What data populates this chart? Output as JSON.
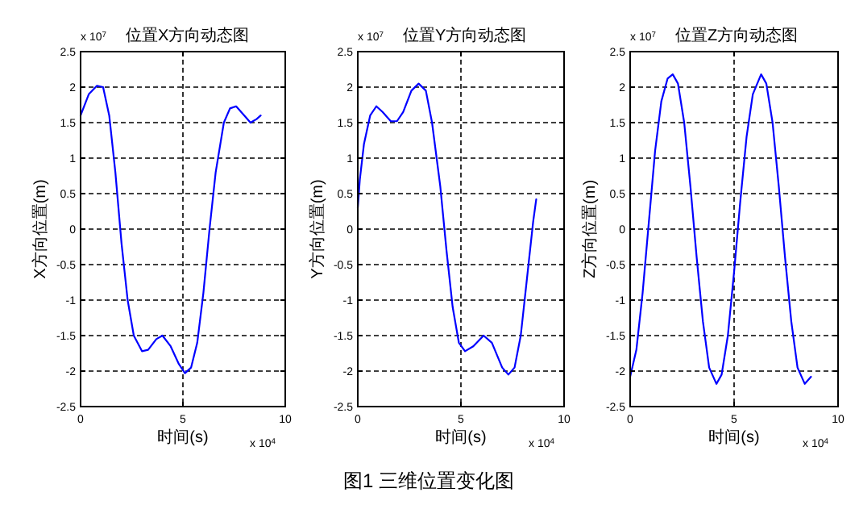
{
  "chart_data": [
    {
      "type": "line",
      "title": "位置X方向动态图",
      "xlabel": "时间(s)",
      "ylabel": "X方向位置(m)",
      "xlim": [
        0,
        10
      ],
      "xticks": [
        0,
        5,
        10
      ],
      "ylim": [
        -2.5,
        2.5
      ],
      "yticks": [
        -2.5,
        -2,
        -1.5,
        -1,
        -0.5,
        0,
        0.5,
        1,
        1.5,
        2,
        2.5
      ],
      "grid": true,
      "annotations": [
        "x 10$^{7}$",
        "x 10$^{4}$",
        "图1 三维位置变化图"
      ],
      "series": [
        {
          "color": "#0000ff",
          "x": [
            0,
            0.4,
            0.8,
            1.1,
            1.4,
            1.7,
            2.0,
            2.3,
            2.6,
            3.0,
            3.3,
            3.7,
            4.0,
            4.4,
            4.8,
            5.1,
            5.4,
            5.7,
            6.0,
            6.3,
            6.6,
            7.0,
            7.3,
            7.6,
            8.0,
            8.3,
            8.6,
            8.8
          ],
          "values": [
            1.6,
            1.9,
            2.02,
            2.0,
            1.6,
            0.8,
            -0.2,
            -1.0,
            -1.5,
            -1.72,
            -1.7,
            -1.55,
            -1.5,
            -1.65,
            -1.9,
            -2.03,
            -1.95,
            -1.6,
            -0.9,
            0,
            0.8,
            1.5,
            1.7,
            1.73,
            1.6,
            1.5,
            1.55,
            1.6
          ]
        }
      ]
    },
    {
      "type": "line",
      "title": "位置Y方向动态图",
      "xlabel": "时间(s)",
      "ylabel": "Y方向位置(m)",
      "xlim": [
        0,
        10
      ],
      "xticks": [
        0,
        5,
        10
      ],
      "ylim": [
        -2.5,
        2.5
      ],
      "yticks": [
        -2.5,
        -2,
        -1.5,
        -1,
        -0.5,
        0,
        0.5,
        1,
        1.5,
        2,
        2.5
      ],
      "grid": true,
      "annotations": [
        "x 10$^{7}$",
        "x 10$^{4}$"
      ],
      "series": [
        {
          "color": "#0000ff",
          "x": [
            0,
            0.1,
            0.3,
            0.6,
            0.9,
            1.2,
            1.6,
            1.9,
            2.2,
            2.6,
            2.95,
            3.3,
            3.6,
            4.0,
            4.3,
            4.6,
            4.9,
            5.2,
            5.6,
            6.1,
            6.5,
            7.0,
            7.3,
            7.6,
            7.9,
            8.2,
            8.5,
            8.65
          ],
          "values": [
            0.3,
            0.7,
            1.2,
            1.6,
            1.73,
            1.65,
            1.52,
            1.52,
            1.65,
            1.95,
            2.05,
            1.95,
            1.5,
            0.6,
            -0.3,
            -1.1,
            -1.6,
            -1.72,
            -1.65,
            -1.5,
            -1.6,
            -1.95,
            -2.05,
            -1.95,
            -1.5,
            -0.7,
            0.1,
            0.42
          ]
        }
      ]
    },
    {
      "type": "line",
      "title": "位置Z方向动态图",
      "xlabel": "时间(s)",
      "ylabel": "Z方向位置(m)",
      "xlim": [
        0,
        10
      ],
      "xticks": [
        0,
        5,
        10
      ],
      "ylim": [
        -2.5,
        2.5
      ],
      "yticks": [
        -2.5,
        -2,
        -1.5,
        -1,
        -0.5,
        0,
        0.5,
        1,
        1.5,
        2,
        2.5
      ],
      "grid": true,
      "annotations": [
        "x 10$^{7}$",
        "x 10$^{4}$"
      ],
      "series": [
        {
          "color": "#0000ff",
          "x": [
            0,
            0.3,
            0.6,
            0.9,
            1.2,
            1.5,
            1.8,
            2.05,
            2.3,
            2.6,
            2.9,
            3.2,
            3.5,
            3.8,
            4.15,
            4.4,
            4.7,
            5.0,
            5.3,
            5.6,
            5.9,
            6.3,
            6.55,
            6.85,
            7.15,
            7.45,
            7.75,
            8.05,
            8.4,
            8.7
          ],
          "values": [
            -2.08,
            -1.7,
            -0.9,
            0.1,
            1.1,
            1.8,
            2.12,
            2.18,
            2.05,
            1.5,
            0.6,
            -0.4,
            -1.3,
            -1.95,
            -2.18,
            -2.05,
            -1.5,
            -0.6,
            0.4,
            1.3,
            1.9,
            2.18,
            2.05,
            1.5,
            0.6,
            -0.4,
            -1.3,
            -1.95,
            -2.18,
            -2.08
          ]
        }
      ]
    }
  ]
}
